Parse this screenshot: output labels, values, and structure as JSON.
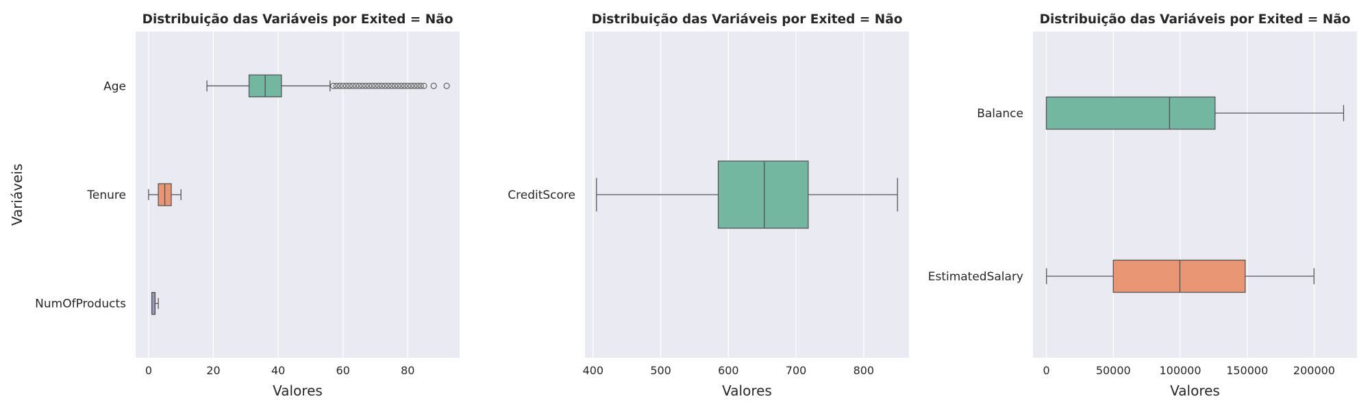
{
  "colors": {
    "panel_bg": "#eaeaf2",
    "grid": "#ffffff",
    "text": "#262626",
    "line": "#555555",
    "palette": [
      "#73b7a0",
      "#e99675",
      "#959cbe"
    ]
  },
  "chart_data": [
    {
      "type": "box",
      "orientation": "horizontal",
      "title": "Distribuição das Variáveis por Exited = Não",
      "xlabel": "Valores",
      "ylabel": "Variáveis",
      "xlim": [
        -4,
        96
      ],
      "xticks": [
        0,
        20,
        40,
        60,
        80
      ],
      "grid": true,
      "categories": [
        "Age",
        "Tenure",
        "NumOfProducts"
      ],
      "boxes": [
        {
          "name": "Age",
          "whislo": 18,
          "q1": 31,
          "med": 36,
          "q3": 41,
          "whishi": 56,
          "fliers": [
            57,
            58,
            59,
            60,
            61,
            62,
            63,
            64,
            65,
            66,
            67,
            68,
            69,
            70,
            71,
            72,
            73,
            74,
            75,
            76,
            77,
            78,
            79,
            80,
            81,
            82,
            83,
            84,
            85,
            88,
            92
          ]
        },
        {
          "name": "Tenure",
          "whislo": 0,
          "q1": 3,
          "med": 5,
          "q3": 7,
          "whishi": 10,
          "fliers": []
        },
        {
          "name": "NumOfProducts",
          "whislo": 1,
          "q1": 1,
          "med": 2,
          "q3": 2,
          "whishi": 3,
          "fliers": []
        }
      ]
    },
    {
      "type": "box",
      "orientation": "horizontal",
      "title": "Distribuição das Variáveis por Exited = Não",
      "xlabel": "Valores",
      "ylabel": "",
      "xlim": [
        388,
        867
      ],
      "xticks": [
        400,
        500,
        600,
        700,
        800
      ],
      "grid": true,
      "categories": [
        "CreditScore"
      ],
      "boxes": [
        {
          "name": "CreditScore",
          "whislo": 405,
          "q1": 585,
          "med": 653,
          "q3": 718,
          "whishi": 850,
          "fliers": []
        }
      ]
    },
    {
      "type": "box",
      "orientation": "horizontal",
      "title": "Distribuição das Variáveis por Exited = Não",
      "xlabel": "Valores",
      "ylabel": "",
      "xlim": [
        -10000,
        232000
      ],
      "xticks": [
        0,
        50000,
        100000,
        150000,
        200000
      ],
      "grid": true,
      "categories": [
        "Balance",
        "EstimatedSalary"
      ],
      "boxes": [
        {
          "name": "Balance",
          "whislo": 0,
          "q1": 0,
          "med": 92000,
          "q3": 126000,
          "whishi": 222000,
          "fliers": []
        },
        {
          "name": "EstimatedSalary",
          "whislo": 90,
          "q1": 50000,
          "med": 99700,
          "q3": 148500,
          "whishi": 199900,
          "fliers": []
        }
      ]
    }
  ]
}
